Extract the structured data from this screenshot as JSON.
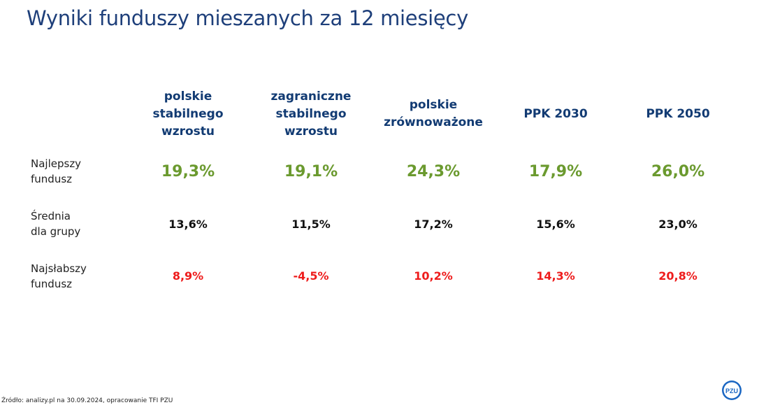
{
  "title": "Wyniki funduszy mieszanych za 12 miesięcy",
  "columns": [
    {
      "label": "polskie\nstabilnego\nwzrostu"
    },
    {
      "label": "zagraniczne\nstabilnego\nwzrostu"
    },
    {
      "label": "polskie\nzrównoważone"
    },
    {
      "label": "PPK 2030"
    },
    {
      "label": "PPK 2050"
    }
  ],
  "rows": [
    {
      "label": "Najlepszy\nfundusz",
      "values": [
        "19,3%",
        "19,1%",
        "24,3%",
        "17,9%",
        "26,0%"
      ]
    },
    {
      "label": "Średnia\ndla grupy",
      "values": [
        "13,6%",
        "11,5%",
        "17,2%",
        "15,6%",
        "23,0%"
      ]
    },
    {
      "label": "Najsłabszy\nfundusz",
      "values": [
        "8,9%",
        "-4,5%",
        "10,2%",
        "14,3%",
        "20,8%"
      ]
    }
  ],
  "source": "Źródło: analizy.pl na 30.09.2024, opracowanie TFI PZU",
  "logo": {
    "icon": "pzu-logo-icon",
    "text": "PZU"
  },
  "colors": {
    "title": "#1e3f7a",
    "header": "#123b73",
    "best": "#6b9a2f",
    "average": "#111111",
    "worst": "#ee1c1c"
  }
}
